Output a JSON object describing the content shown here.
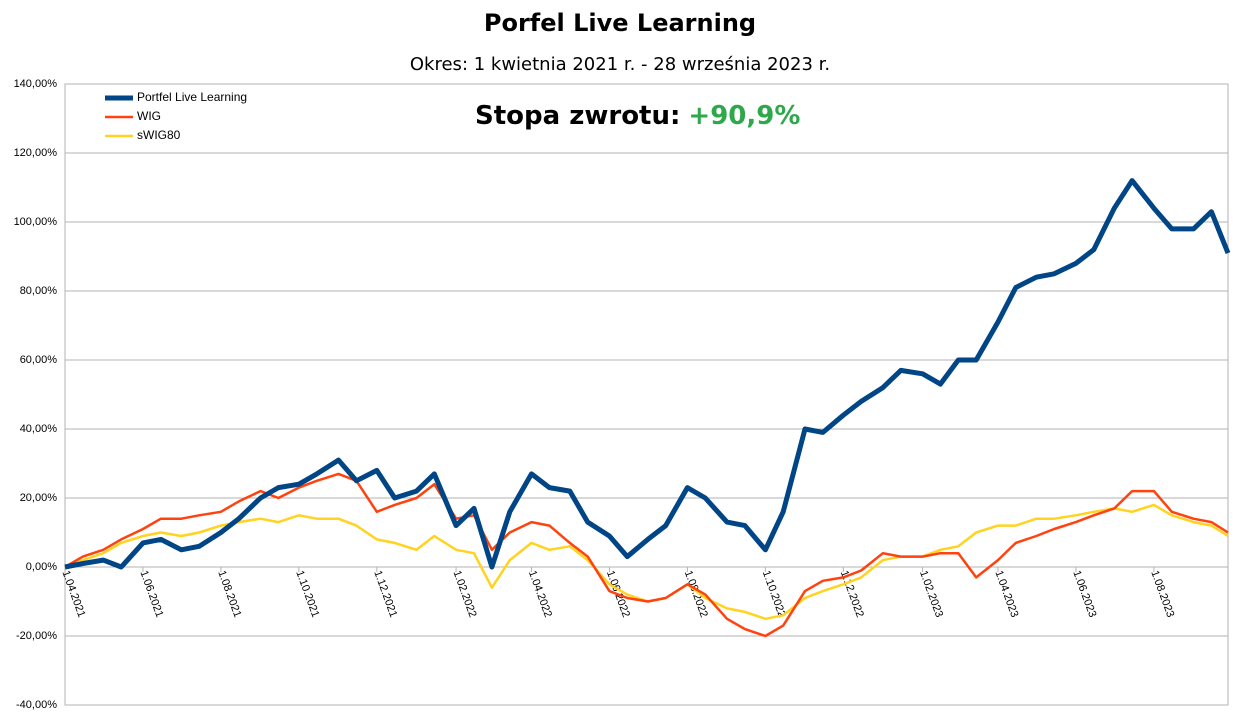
{
  "chart_data": {
    "type": "line",
    "title": "Porfel Live Learning",
    "subtitle": "Okres: 1 kwietnia 2021 r. - 28 września 2023 r.",
    "annotation": {
      "label": "Stopa zwrotu:",
      "value_label": "+90,9%",
      "color": "#2ea84a"
    },
    "x": [
      "1.04.2021",
      "15.04.2021",
      "1.05.2021",
      "15.05.2021",
      "1.06.2021",
      "15.06.2021",
      "1.07.2021",
      "15.07.2021",
      "1.08.2021",
      "15.08.2021",
      "1.09.2021",
      "15.09.2021",
      "1.10.2021",
      "15.10.2021",
      "1.11.2021",
      "15.11.2021",
      "1.12.2021",
      "15.12.2021",
      "1.01.2022",
      "15.01.2022",
      "1.02.2022",
      "15.02.2022",
      "1.03.2022",
      "15.03.2022",
      "1.04.2022",
      "15.04.2022",
      "1.05.2022",
      "15.05.2022",
      "1.06.2022",
      "15.06.2022",
      "1.07.2022",
      "15.07.2022",
      "1.08.2022",
      "15.08.2022",
      "1.09.2022",
      "15.09.2022",
      "1.10.2022",
      "15.10.2022",
      "1.11.2022",
      "15.11.2022",
      "1.12.2022",
      "15.12.2022",
      "1.01.2023",
      "15.01.2023",
      "1.02.2023",
      "15.02.2023",
      "1.03.2023",
      "15.03.2023",
      "1.04.2023",
      "15.04.2023",
      "1.05.2023",
      "15.05.2023",
      "1.06.2023",
      "15.06.2023",
      "1.07.2023",
      "15.07.2023",
      "1.08.2023",
      "15.08.2023",
      "1.09.2023",
      "15.09.2023",
      "28.09.2023"
    ],
    "series": [
      {
        "name": "Portfel Live Learning",
        "color": "#004586",
        "width": 5,
        "values": [
          0,
          1,
          2,
          0,
          7,
          8,
          5,
          6,
          10,
          14,
          20,
          23,
          24,
          27,
          31,
          25,
          28,
          20,
          22,
          27,
          12,
          17,
          0,
          16,
          27,
          23,
          22,
          13,
          9,
          3,
          8,
          12,
          23,
          20,
          13,
          12,
          5,
          16,
          40,
          39,
          44,
          48,
          52,
          57,
          56,
          53,
          60,
          60,
          71,
          81,
          84,
          85,
          88,
          92,
          104,
          112,
          104,
          98,
          98,
          103,
          91
        ]
      },
      {
        "name": "WIG",
        "color": "#ff420e",
        "width": 2.5,
        "values": [
          0,
          3,
          5,
          8,
          11,
          14,
          14,
          15,
          16,
          19,
          22,
          20,
          23,
          25,
          27,
          25,
          16,
          18,
          20,
          24,
          14,
          15,
          5,
          10,
          13,
          12,
          7,
          3,
          -7,
          -9,
          -10,
          -9,
          -5,
          -8,
          -15,
          -18,
          -20,
          -17,
          -7,
          -4,
          -3,
          -1,
          4,
          3,
          3,
          4,
          4,
          -3,
          2,
          7,
          9,
          11,
          13,
          15,
          17,
          22,
          22,
          16,
          14,
          13,
          10
        ]
      },
      {
        "name": "sWIG80",
        "color": "#ffd320",
        "width": 2.5,
        "values": [
          0,
          2,
          4,
          7,
          9,
          10,
          9,
          10,
          12,
          13,
          14,
          13,
          15,
          14,
          14,
          12,
          8,
          7,
          5,
          9,
          5,
          4,
          -6,
          2,
          7,
          5,
          6,
          2,
          -5,
          -8,
          -10,
          -9,
          -5,
          -9,
          -12,
          -13,
          -15,
          -14,
          -9,
          -7,
          -5,
          -3,
          2,
          3,
          3,
          5,
          6,
          10,
          12,
          12,
          14,
          14,
          15,
          16,
          17,
          16,
          18,
          15,
          13,
          12,
          9
        ]
      }
    ],
    "xlim": [
      "1.04.2021",
      "28.09.2023"
    ],
    "xticks": [
      "1.04.2021",
      "1.06.2021",
      "1.08.2021",
      "1.10.2021",
      "1.12.2021",
      "1.02.2022",
      "1.04.2022",
      "1.06.2022",
      "1.08.2022",
      "1.10.2022",
      "1.12.2022",
      "1.02.2023",
      "1.04.2023",
      "1.06.2023",
      "1.08.2023"
    ],
    "ylim": [
      -40,
      140
    ],
    "yticks": [
      {
        "value": -40,
        "label": "-40,00%"
      },
      {
        "value": -20,
        "label": "-20,00%"
      },
      {
        "value": 0,
        "label": "0,00%"
      },
      {
        "value": 20,
        "label": "20,00%"
      },
      {
        "value": 40,
        "label": "40,00%"
      },
      {
        "value": 60,
        "label": "60,00%"
      },
      {
        "value": 80,
        "label": "80,00%"
      },
      {
        "value": 100,
        "label": "100,00%"
      },
      {
        "value": 120,
        "label": "120,00%"
      },
      {
        "value": 140,
        "label": "140,00%"
      }
    ],
    "grid": true,
    "legend": "top-left"
  }
}
